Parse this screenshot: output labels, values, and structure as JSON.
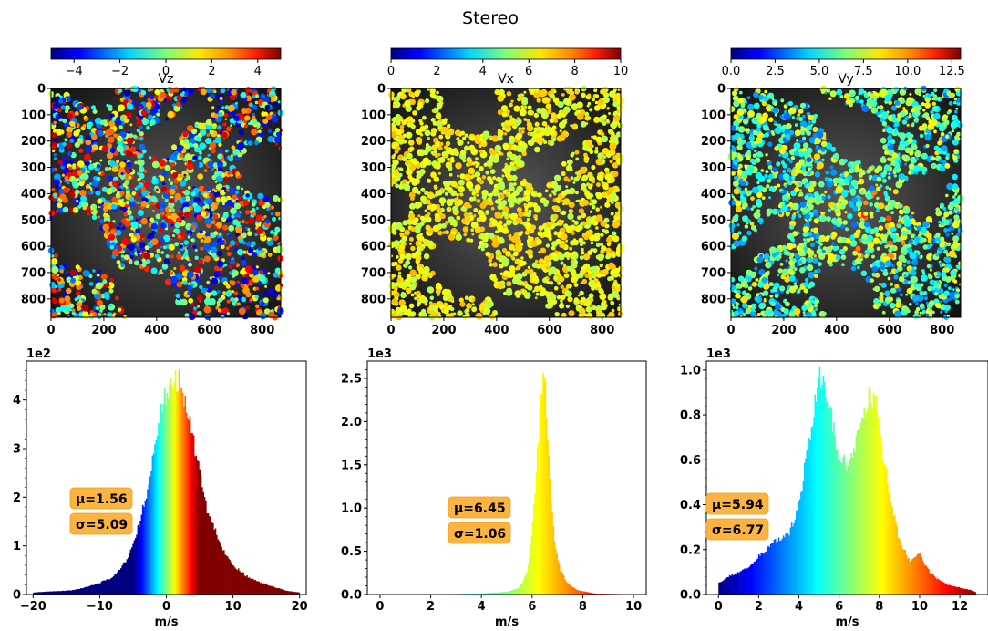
{
  "suptitle": "Stereo",
  "panels": [
    {
      "name": "Vz",
      "cbar_ticks": [
        "−4",
        "−2",
        "0",
        "2",
        "4"
      ],
      "cbar_vals": [
        -4,
        -2,
        0,
        2,
        4
      ],
      "vmin": -5,
      "vmax": 5
    },
    {
      "name": "Vx",
      "cbar_ticks": [
        "0",
        "2",
        "4",
        "6",
        "8",
        "10"
      ],
      "cbar_vals": [
        0,
        2,
        4,
        6,
        8,
        10
      ],
      "vmin": 0,
      "vmax": 10
    },
    {
      "name": "Vy",
      "cbar_ticks": [
        "0.0",
        "2.5",
        "5.0",
        "7.5",
        "10.0",
        "12.5"
      ],
      "cbar_vals": [
        0,
        2.5,
        5,
        7.5,
        10,
        12.5
      ],
      "vmin": 0,
      "vmax": 13
    }
  ],
  "image_axes": {
    "x_ticks": [
      "0",
      "200",
      "400",
      "600",
      "800"
    ],
    "y_ticks": [
      "0",
      "100",
      "200",
      "300",
      "400",
      "500",
      "600",
      "700",
      "800"
    ],
    "extent": 870
  },
  "chart_data": [
    {
      "type": "bar",
      "title": "",
      "xlabel": "m/s",
      "ylabel": "",
      "scale_label": "1e2",
      "x": [
        -20,
        -18,
        -16,
        -14,
        -12,
        -10,
        -8,
        -6,
        -4,
        -3,
        -2,
        -1,
        0,
        1,
        2,
        3,
        4,
        5,
        6,
        8,
        10,
        12,
        14,
        16,
        18,
        20
      ],
      "values": [
        0.04,
        0.06,
        0.07,
        0.09,
        0.15,
        0.24,
        0.36,
        0.7,
        1.45,
        2.1,
        2.9,
        3.6,
        4.2,
        4.5,
        4.35,
        3.9,
        3.2,
        2.5,
        1.8,
        1.05,
        0.6,
        0.38,
        0.25,
        0.16,
        0.08,
        0.04
      ],
      "xlim": [
        -21,
        21
      ],
      "ylim": [
        0,
        4.8
      ],
      "x_ticks": [
        -20,
        -10,
        0,
        10,
        20
      ],
      "x_tick_labels": [
        "−20",
        "−10",
        "0",
        "10",
        "20"
      ],
      "y_ticks": [
        0,
        1,
        2,
        3,
        4
      ],
      "y_tick_labels": [
        "0",
        "1",
        "2",
        "3",
        "4"
      ],
      "mu": "μ=1.56",
      "sigma": "σ=5.09"
    },
    {
      "type": "bar",
      "title": "",
      "xlabel": "m/s",
      "ylabel": "",
      "scale_label": "1e3",
      "x": [
        0,
        1,
        2,
        3,
        4,
        5,
        5.5,
        5.8,
        6.0,
        6.2,
        6.35,
        6.5,
        6.6,
        6.75,
        6.9,
        7.1,
        7.4,
        7.8,
        8.5,
        10
      ],
      "values": [
        0.003,
        0.003,
        0.004,
        0.006,
        0.01,
        0.03,
        0.08,
        0.25,
        0.7,
        1.6,
        2.4,
        2.6,
        1.9,
        1.1,
        0.6,
        0.3,
        0.12,
        0.05,
        0.01,
        0.003
      ],
      "xlim": [
        -0.5,
        10.5
      ],
      "ylim": [
        0,
        2.7
      ],
      "x_ticks": [
        0,
        2,
        4,
        6,
        8,
        10
      ],
      "x_tick_labels": [
        "0",
        "2",
        "4",
        "6",
        "8",
        "10"
      ],
      "y_ticks": [
        0,
        0.5,
        1.0,
        1.5,
        2.0,
        2.5
      ],
      "y_tick_labels": [
        "0.0",
        "0.5",
        "1.0",
        "1.5",
        "2.0",
        "2.5"
      ],
      "mu": "μ=6.45",
      "sigma": "σ=1.06"
    },
    {
      "type": "bar",
      "title": "",
      "xlabel": "m/s",
      "ylabel": "",
      "scale_label": "1e3",
      "x": [
        0,
        0.5,
        1,
        1.5,
        2,
        2.5,
        3,
        3.5,
        4,
        4.5,
        5,
        5.3,
        5.6,
        6,
        6.5,
        7,
        7.5,
        7.8,
        8.2,
        8.6,
        9,
        9.5,
        10,
        10.5,
        11,
        11.5,
        12,
        12.5,
        12.8
      ],
      "values": [
        0.05,
        0.08,
        0.1,
        0.12,
        0.17,
        0.21,
        0.25,
        0.27,
        0.4,
        0.68,
        0.98,
        0.95,
        0.8,
        0.6,
        0.58,
        0.72,
        0.9,
        0.86,
        0.62,
        0.4,
        0.24,
        0.15,
        0.18,
        0.1,
        0.06,
        0.04,
        0.03,
        0.02,
        0.01
      ],
      "xlim": [
        -0.6,
        13.4
      ],
      "ylim": [
        0,
        1.04
      ],
      "x_ticks": [
        0,
        2,
        4,
        6,
        8,
        10,
        12
      ],
      "x_tick_labels": [
        "0",
        "2",
        "4",
        "6",
        "8",
        "10",
        "12"
      ],
      "y_ticks": [
        0,
        0.2,
        0.4,
        0.6,
        0.8,
        1.0
      ],
      "y_tick_labels": [
        "0.0",
        "0.2",
        "0.4",
        "0.6",
        "0.8",
        "1.0"
      ],
      "mu": "μ=5.94",
      "sigma": "σ=6.77"
    }
  ]
}
